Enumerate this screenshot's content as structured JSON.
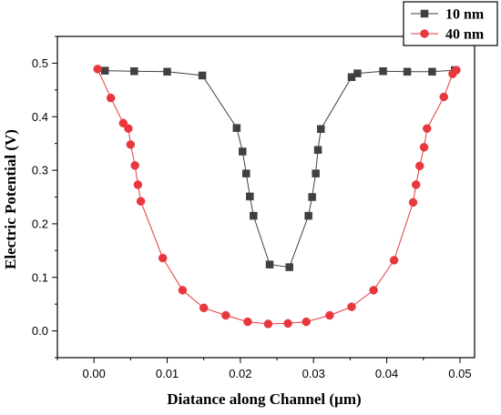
{
  "chart_data": {
    "type": "line",
    "xlabel": "Diatance along Channel (µm)",
    "ylabel": "Electric Potential (V)",
    "xlim": [
      -0.005,
      0.052
    ],
    "ylim": [
      -0.05,
      0.55
    ],
    "x_ticks": [
      "0.00",
      "0.01",
      "0.02",
      "0.03",
      "0.04",
      "0.05"
    ],
    "y_ticks": [
      "0.0",
      "0.1",
      "0.2",
      "0.3",
      "0.4",
      "0.5"
    ],
    "legend_position": "top-right",
    "grid": false,
    "series": [
      {
        "name": "10 nm",
        "color": "#404040",
        "marker": "square",
        "points": [
          [
            0.0015,
            0.486
          ],
          [
            0.0055,
            0.485
          ],
          [
            0.01,
            0.484
          ],
          [
            0.0148,
            0.477
          ],
          [
            0.0195,
            0.379
          ],
          [
            0.0203,
            0.335
          ],
          [
            0.0208,
            0.294
          ],
          [
            0.0213,
            0.251
          ],
          [
            0.0218,
            0.215
          ],
          [
            0.024,
            0.124
          ],
          [
            0.0267,
            0.119
          ],
          [
            0.0293,
            0.215
          ],
          [
            0.0298,
            0.25
          ],
          [
            0.0303,
            0.294
          ],
          [
            0.0306,
            0.338
          ],
          [
            0.031,
            0.377
          ],
          [
            0.0352,
            0.474
          ],
          [
            0.036,
            0.481
          ],
          [
            0.0395,
            0.485
          ],
          [
            0.0428,
            0.484
          ],
          [
            0.0462,
            0.484
          ],
          [
            0.0493,
            0.487
          ]
        ]
      },
      {
        "name": "40 nm",
        "color": "#e8383d",
        "marker": "circle",
        "points": [
          [
            0.0005,
            0.489
          ],
          [
            0.0023,
            0.435
          ],
          [
            0.004,
            0.388
          ],
          [
            0.0047,
            0.378
          ],
          [
            0.005,
            0.348
          ],
          [
            0.0056,
            0.309
          ],
          [
            0.006,
            0.273
          ],
          [
            0.0064,
            0.242
          ],
          [
            0.0094,
            0.136
          ],
          [
            0.0121,
            0.076
          ],
          [
            0.015,
            0.043
          ],
          [
            0.018,
            0.029
          ],
          [
            0.021,
            0.017
          ],
          [
            0.0238,
            0.013
          ],
          [
            0.0265,
            0.014
          ],
          [
            0.029,
            0.017
          ],
          [
            0.0322,
            0.029
          ],
          [
            0.0352,
            0.045
          ],
          [
            0.0382,
            0.076
          ],
          [
            0.041,
            0.132
          ],
          [
            0.0436,
            0.24
          ],
          [
            0.044,
            0.273
          ],
          [
            0.0445,
            0.308
          ],
          [
            0.0451,
            0.343
          ],
          [
            0.0455,
            0.378
          ],
          [
            0.0478,
            0.437
          ],
          [
            0.049,
            0.48
          ],
          [
            0.0495,
            0.487
          ]
        ]
      }
    ]
  }
}
